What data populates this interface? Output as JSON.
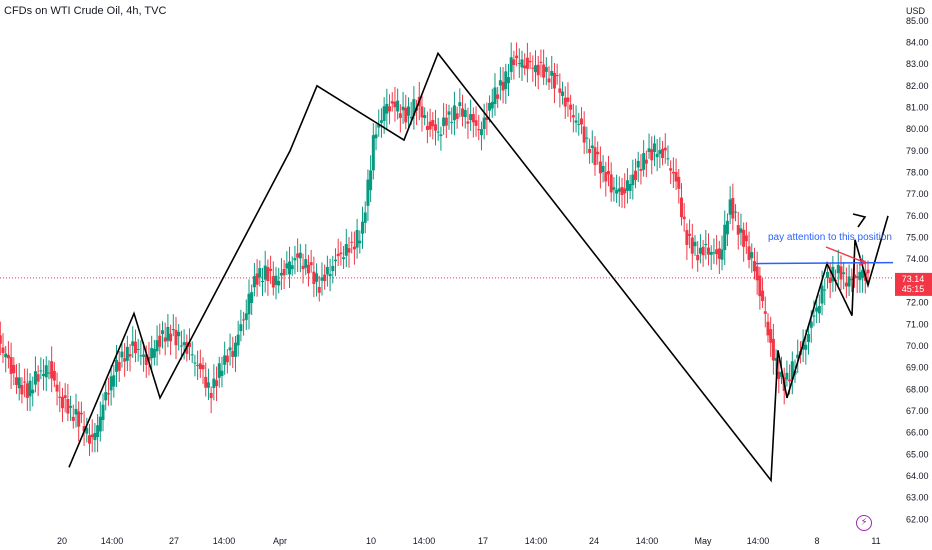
{
  "header": {
    "title": "CFDs on WTI Crude Oil, 4h, TVC",
    "currency": "USD"
  },
  "annotation": {
    "text": "pay attention to this position"
  },
  "price_tag": {
    "price": "73.14",
    "countdown": "45:15",
    "color": "#f23645"
  },
  "colors": {
    "up": "#089981",
    "down": "#f23645",
    "line": "#2962ff",
    "annotation_arrow": "#f23645"
  },
  "chart_data": {
    "type": "candlestick",
    "title": "CFDs on WTI Crude Oil, 4h, TVC",
    "y_axis_label": "USD",
    "ylim": [
      61.6,
      85.5
    ],
    "y_ticks": [
      "62.00",
      "63.00",
      "64.00",
      "65.00",
      "66.00",
      "67.00",
      "68.00",
      "69.00",
      "70.00",
      "71.00",
      "72.00",
      "73.00",
      "74.00",
      "75.00",
      "76.00",
      "77.00",
      "78.00",
      "79.00",
      "80.00",
      "81.00",
      "82.00",
      "83.00",
      "84.00",
      "85.00"
    ],
    "x_ticks": [
      "20",
      "14:00",
      "27",
      "14:00",
      "Apr",
      "10",
      "14:00",
      "17",
      "14:00",
      "24",
      "14:00",
      "May",
      "14:00",
      "8",
      "11"
    ],
    "current_price": 73.14,
    "horizontal_level": 73.8,
    "zigzag": [
      {
        "t": "20",
        "price": 64.4
      },
      {
        "t": "14:00",
        "price": 71.5
      },
      {
        "t": "27",
        "price": 67.6
      },
      {
        "t": "Apr",
        "price": 79.0
      },
      {
        "t": "Apr+",
        "price": 82.0
      },
      {
        "t": "10",
        "price": 79.5
      },
      {
        "t": "14:00",
        "price": 83.5
      },
      {
        "t": "May",
        "price": 63.8
      },
      {
        "t": "May+",
        "price": 69.8
      },
      {
        "t": "May++",
        "price": 67.6
      },
      {
        "t": "8",
        "price": 73.8
      },
      {
        "t": "8+",
        "price": 71.4
      },
      {
        "t": "8++",
        "price": 74.9
      },
      {
        "t": "11",
        "price": 72.8
      },
      {
        "t": "11+",
        "price": 76.0
      }
    ],
    "candles_close_path": [
      69.5,
      68.3,
      67.9,
      68.7,
      69.0,
      67.6,
      67.0,
      66.5,
      65.5,
      67.2,
      68.8,
      69.6,
      70.0,
      69.3,
      70.2,
      70.6,
      70.3,
      69.7,
      68.9,
      67.8,
      69.2,
      69.8,
      71.3,
      73.1,
      73.4,
      72.9,
      73.6,
      74.1,
      73.6,
      72.8,
      73.6,
      74.3,
      74.6,
      75.4,
      79.4,
      80.9,
      81.1,
      80.6,
      81.2,
      80.2,
      79.9,
      80.6,
      80.9,
      80.4,
      79.9,
      81.4,
      82.1,
      83.3,
      83.0,
      82.9,
      82.6,
      82.1,
      81.0,
      80.2,
      79.1,
      78.3,
      77.4,
      77.1,
      77.8,
      78.6,
      79.0,
      78.8,
      77.6,
      74.9,
      74.3,
      74.5,
      74.1,
      76.6,
      75.1,
      74.0,
      71.9,
      69.4,
      68.2,
      69.2,
      70.3,
      71.8,
      73.2,
      73.4,
      72.9,
      73.3,
      73.14
    ]
  }
}
